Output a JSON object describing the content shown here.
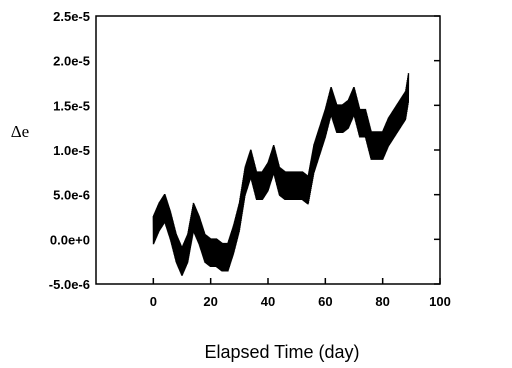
{
  "chart_data": {
    "type": "line",
    "title": "",
    "xlabel": "Elapsed Time (day)",
    "ylabel": "Δe",
    "xlim": [
      -20,
      100
    ],
    "ylim": [
      -5e-06,
      2.5e-05
    ],
    "grid": false,
    "legend": "none",
    "line_color": "#000000",
    "xticks": [
      0,
      20,
      40,
      60,
      80,
      100
    ],
    "xtick_labels": [
      "0",
      "20",
      "40",
      "60",
      "80",
      "100"
    ],
    "yticks": [
      -5e-06,
      0,
      5e-06,
      1e-05,
      1.5e-05,
      2e-05,
      2.5e-05
    ],
    "ytick_labels": [
      "-5.0e-6",
      "0.0e+0",
      "5.0e-6",
      "1.0e-5",
      "1.5e-5",
      "2.0e-5",
      "2.5e-5"
    ],
    "series": [
      {
        "x": [
          0,
          2,
          4,
          6,
          8,
          10,
          12,
          14,
          16,
          18,
          20,
          22,
          24,
          26,
          28,
          30,
          32,
          34,
          36,
          38,
          40,
          42,
          44,
          46,
          48,
          50,
          52,
          54,
          56,
          58,
          60,
          62,
          64,
          66,
          68,
          70,
          72,
          74,
          76,
          78,
          80,
          82,
          84,
          86,
          88,
          89
        ],
        "y": [
          1e-06,
          2.5e-06,
          3.5e-06,
          1.5e-06,
          -1e-06,
          -2.5e-06,
          -1e-06,
          2.5e-06,
          1e-06,
          -1e-06,
          -1.5e-06,
          -1.5e-06,
          -2e-06,
          -2e-06,
          0,
          2.5e-06,
          6.5e-06,
          8.5e-06,
          6e-06,
          6e-06,
          7e-06,
          9e-06,
          6.5e-06,
          6e-06,
          6e-06,
          6e-06,
          6e-06,
          5.5e-06,
          9e-06,
          1.1e-05,
          1.3e-05,
          1.55e-05,
          1.35e-05,
          1.35e-05,
          1.4e-05,
          1.55e-05,
          1.3e-05,
          1.3e-05,
          1.05e-05,
          1.05e-05,
          1.05e-05,
          1.2e-05,
          1.3e-05,
          1.4e-05,
          1.5e-05,
          1.7e-05
        ]
      }
    ]
  }
}
